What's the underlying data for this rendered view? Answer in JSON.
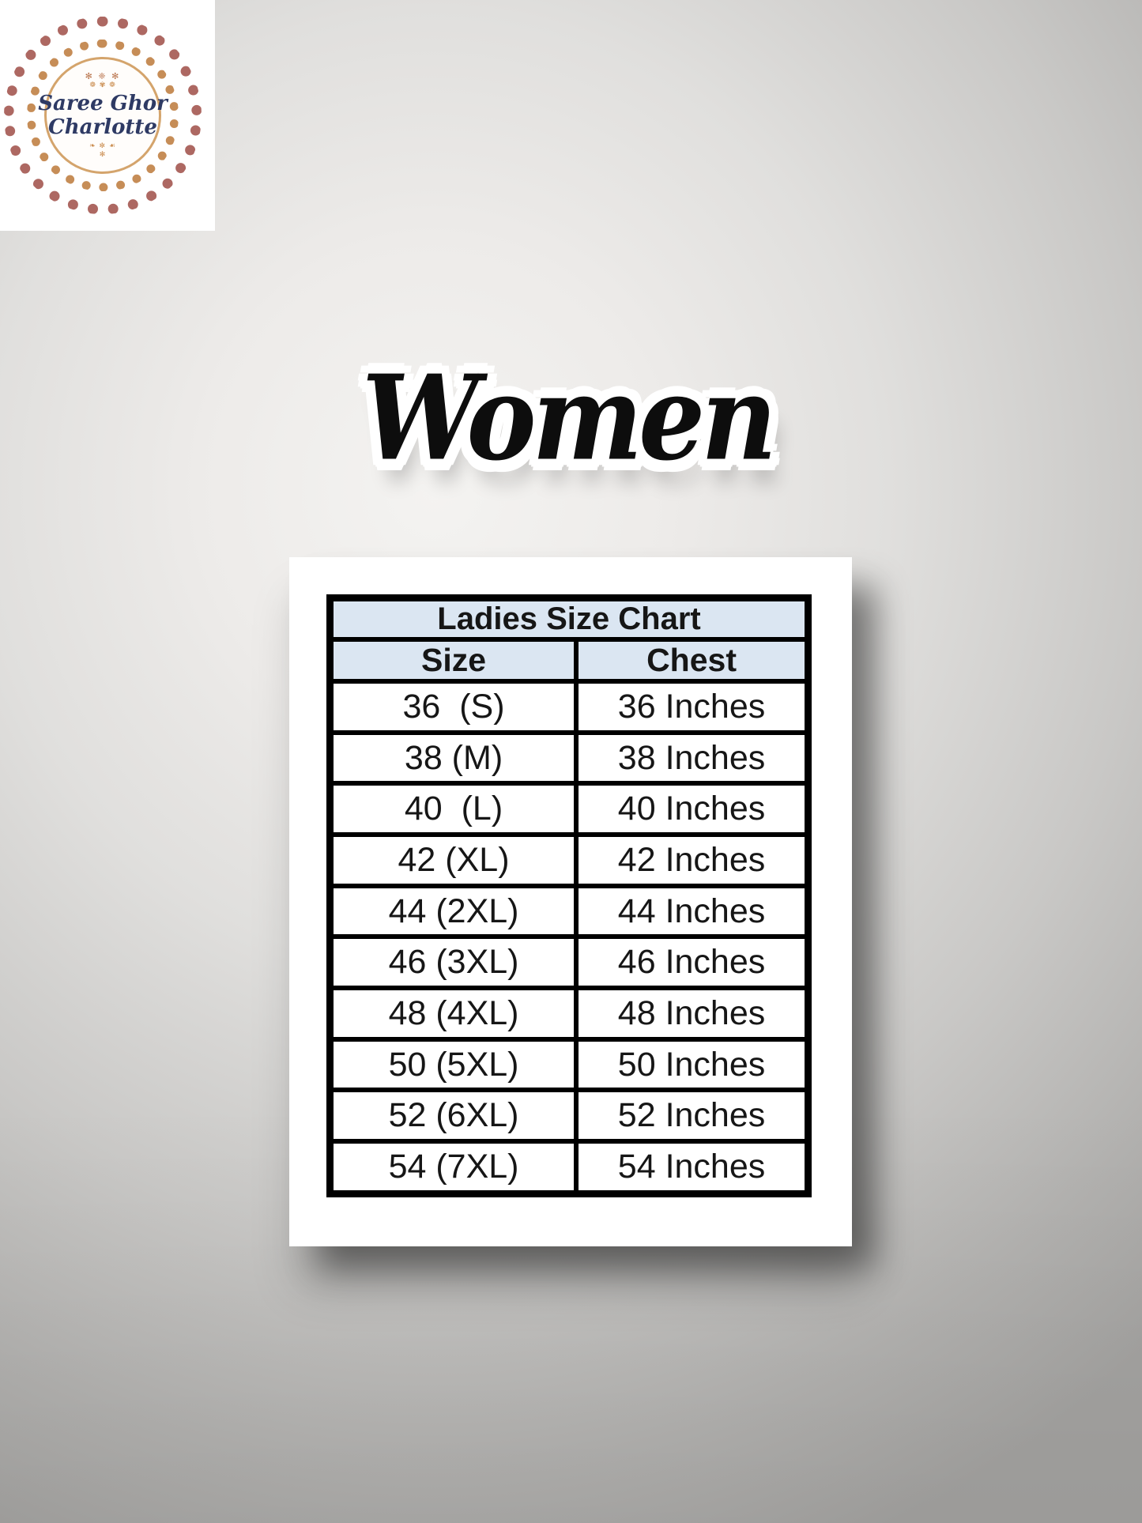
{
  "colors": {
    "background_light": "#f4f3f1",
    "background_dark": "#a4a3a1",
    "card_fill": "#ffffff",
    "table_border": "#000000",
    "table_header_fill": "#dbe6f2",
    "table_text": "#161616",
    "title_color": "#0d0d0d",
    "title_outline": "#ffffff",
    "logo_text_navy": "#2e3a64",
    "logo_ring_rose": "#ad6862",
    "logo_ring_gold": "#c68d57"
  },
  "logo": {
    "line1": "Saree Ghor",
    "line2": "Charlotte",
    "ornament_top_1": "✻ ❈ ✻",
    "ornament_top_2": "❁ ✾ ❁",
    "ornament_bottom_1": "❧ ✼ ☙",
    "ornament_bottom_2": "✻"
  },
  "title": {
    "text": "Women"
  },
  "chart_data": {
    "type": "table",
    "title": "Ladies Size Chart",
    "columns": [
      "Size",
      "Chest"
    ],
    "rows": [
      [
        "36  (S)",
        "36 Inches"
      ],
      [
        "38 (M)",
        "38 Inches"
      ],
      [
        "40  (L)",
        "40 Inches"
      ],
      [
        "42 (XL)",
        "42 Inches"
      ],
      [
        "44 (2XL)",
        "44 Inches"
      ],
      [
        "46 (3XL)",
        "46 Inches"
      ],
      [
        "48 (4XL)",
        "48 Inches"
      ],
      [
        "50 (5XL)",
        "50 Inches"
      ],
      [
        "52 (6XL)",
        "52 Inches"
      ],
      [
        "54 (7XL)",
        "54 Inches"
      ]
    ]
  }
}
